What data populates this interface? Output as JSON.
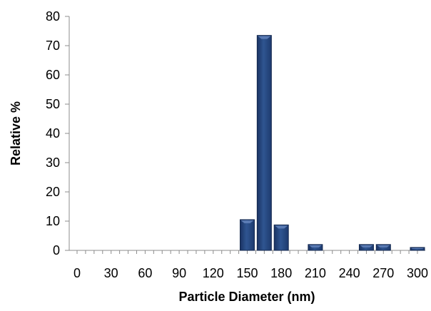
{
  "chart_data": {
    "type": "bar",
    "title": "",
    "xlabel": "Particle Diameter (nm)",
    "ylabel": "Relative %",
    "ylim": [
      0,
      80
    ],
    "xlim": [
      0,
      300
    ],
    "yticks": [
      0,
      10,
      20,
      30,
      40,
      50,
      60,
      70,
      80
    ],
    "xticks": [
      "0",
      "30",
      "60",
      "90",
      "120",
      "150",
      "180",
      "210",
      "240",
      "270",
      "300"
    ],
    "grid": false,
    "legend": "none",
    "bar_color": "#2b4a80",
    "x": [
      150,
      165,
      180,
      210,
      255,
      270,
      300
    ],
    "values": [
      10.5,
      73.5,
      8.7,
      2.0,
      2.0,
      2.0,
      1.0
    ]
  }
}
